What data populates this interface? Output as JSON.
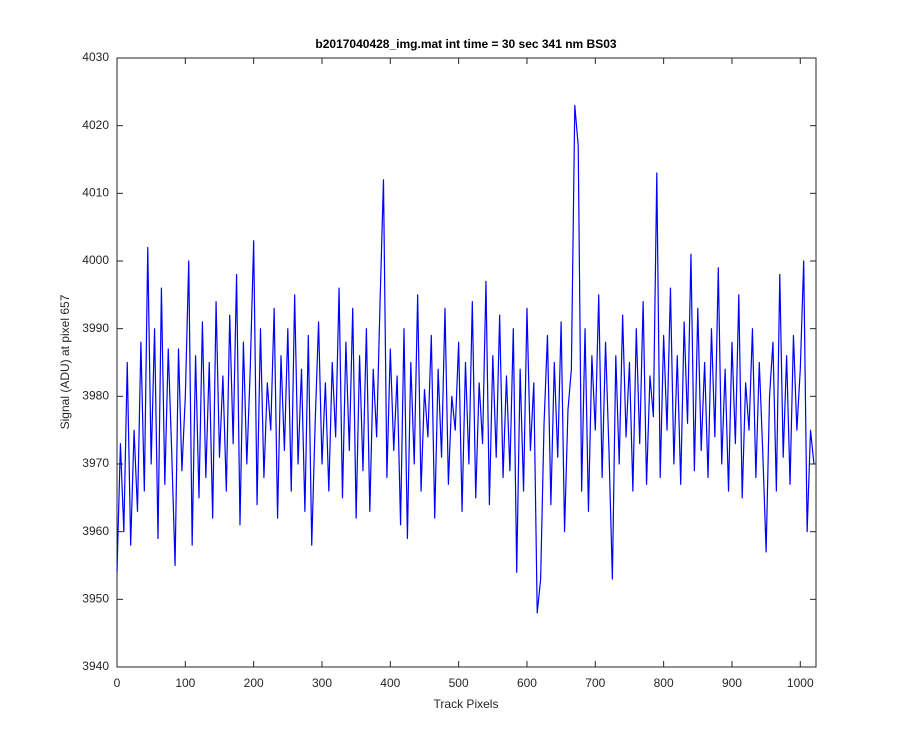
{
  "chart_data": {
    "type": "line",
    "title": "b2017040428_img.mat int time = 30 sec  341 nm BS03",
    "x_label": "Track Pixels",
    "y_label": "Signal (ADU) at pixel 657",
    "color": "#0000ff",
    "xlim": [
      0,
      1023
    ],
    "ylim": [
      3940,
      4030
    ],
    "xticks": [
      0,
      100,
      200,
      300,
      400,
      500,
      600,
      700,
      800,
      900,
      1000
    ],
    "yticks": [
      3940,
      3950,
      3960,
      3970,
      3980,
      3990,
      4000,
      4010,
      4020,
      4030
    ],
    "x": [
      0,
      5,
      10,
      15,
      20,
      25,
      30,
      35,
      40,
      45,
      50,
      55,
      60,
      65,
      70,
      75,
      80,
      85,
      90,
      95,
      100,
      105,
      110,
      115,
      120,
      125,
      130,
      135,
      140,
      145,
      150,
      155,
      160,
      165,
      170,
      175,
      180,
      185,
      190,
      195,
      200,
      205,
      210,
      215,
      220,
      225,
      230,
      235,
      240,
      245,
      250,
      255,
      260,
      265,
      270,
      275,
      280,
      285,
      290,
      295,
      300,
      305,
      310,
      315,
      320,
      325,
      330,
      335,
      340,
      345,
      350,
      355,
      360,
      365,
      370,
      375,
      380,
      385,
      390,
      395,
      400,
      405,
      410,
      415,
      420,
      425,
      430,
      435,
      440,
      445,
      450,
      455,
      460,
      465,
      470,
      475,
      480,
      485,
      490,
      495,
      500,
      505,
      510,
      515,
      520,
      525,
      530,
      535,
      540,
      545,
      550,
      555,
      560,
      565,
      570,
      575,
      580,
      585,
      590,
      595,
      600,
      605,
      610,
      615,
      620,
      625,
      630,
      635,
      640,
      645,
      650,
      655,
      660,
      665,
      670,
      675,
      680,
      685,
      690,
      695,
      700,
      705,
      710,
      715,
      720,
      725,
      730,
      735,
      740,
      745,
      750,
      755,
      760,
      765,
      770,
      775,
      780,
      785,
      790,
      795,
      800,
      805,
      810,
      815,
      820,
      825,
      830,
      835,
      840,
      845,
      850,
      855,
      860,
      865,
      870,
      875,
      880,
      885,
      890,
      895,
      900,
      905,
      910,
      915,
      920,
      925,
      930,
      935,
      940,
      945,
      950,
      955,
      960,
      965,
      970,
      975,
      980,
      985,
      990,
      995,
      1000,
      1005,
      1010,
      1015,
      1020
    ],
    "values": [
      3954,
      3973,
      3960,
      3985,
      3958,
      3975,
      3963,
      3988,
      3966,
      4002,
      3970,
      3990,
      3959,
      3996,
      3967,
      3987,
      3972,
      3955,
      3987,
      3969,
      3980,
      4000,
      3958,
      3986,
      3965,
      3991,
      3968,
      3985,
      3962,
      3994,
      3971,
      3983,
      3966,
      3992,
      3973,
      3998,
      3961,
      3988,
      3970,
      3984,
      4003,
      3964,
      3990,
      3968,
      3982,
      3975,
      3993,
      3962,
      3986,
      3972,
      3990,
      3966,
      3995,
      3970,
      3984,
      3963,
      3989,
      3958,
      3976,
      3991,
      3970,
      3982,
      3966,
      3985,
      3974,
      3996,
      3965,
      3988,
      3972,
      3993,
      3962,
      3986,
      3969,
      3990,
      3963,
      3984,
      3974,
      3994,
      4012,
      3968,
      3987,
      3972,
      3983,
      3961,
      3990,
      3959,
      3985,
      3970,
      3995,
      3966,
      3981,
      3974,
      3989,
      3962,
      3984,
      3971,
      3993,
      3967,
      3980,
      3975,
      3988,
      3963,
      3985,
      3970,
      3994,
      3965,
      3982,
      3973,
      3997,
      3964,
      3986,
      3971,
      3992,
      3968,
      3983,
      3969,
      3990,
      3954,
      3984,
      3966,
      3993,
      3972,
      3982,
      3948,
      3953,
      3976,
      3989,
      3964,
      3985,
      3971,
      3991,
      3960,
      3978,
      3984,
      4023,
      4017,
      3966,
      3990,
      3963,
      3986,
      3975,
      3995,
      3968,
      3988,
      3972,
      3953,
      3986,
      3970,
      3992,
      3974,
      3985,
      3966,
      3990,
      3973,
      3994,
      3967,
      3983,
      3977,
      4013,
      3968,
      3989,
      3975,
      3996,
      3970,
      3986,
      3967,
      3991,
      3976,
      4001,
      3969,
      3993,
      3972,
      3985,
      3968,
      3990,
      3974,
      3999,
      3970,
      3984,
      3966,
      3988,
      3973,
      3995,
      3965,
      3982,
      3975,
      3990,
      3968,
      3985,
      3972,
      3957,
      3980,
      3988,
      3966,
      3998,
      3971,
      3986,
      3967,
      3989,
      3975,
      3984,
      4000,
      3960,
      3975,
      3970
    ]
  }
}
